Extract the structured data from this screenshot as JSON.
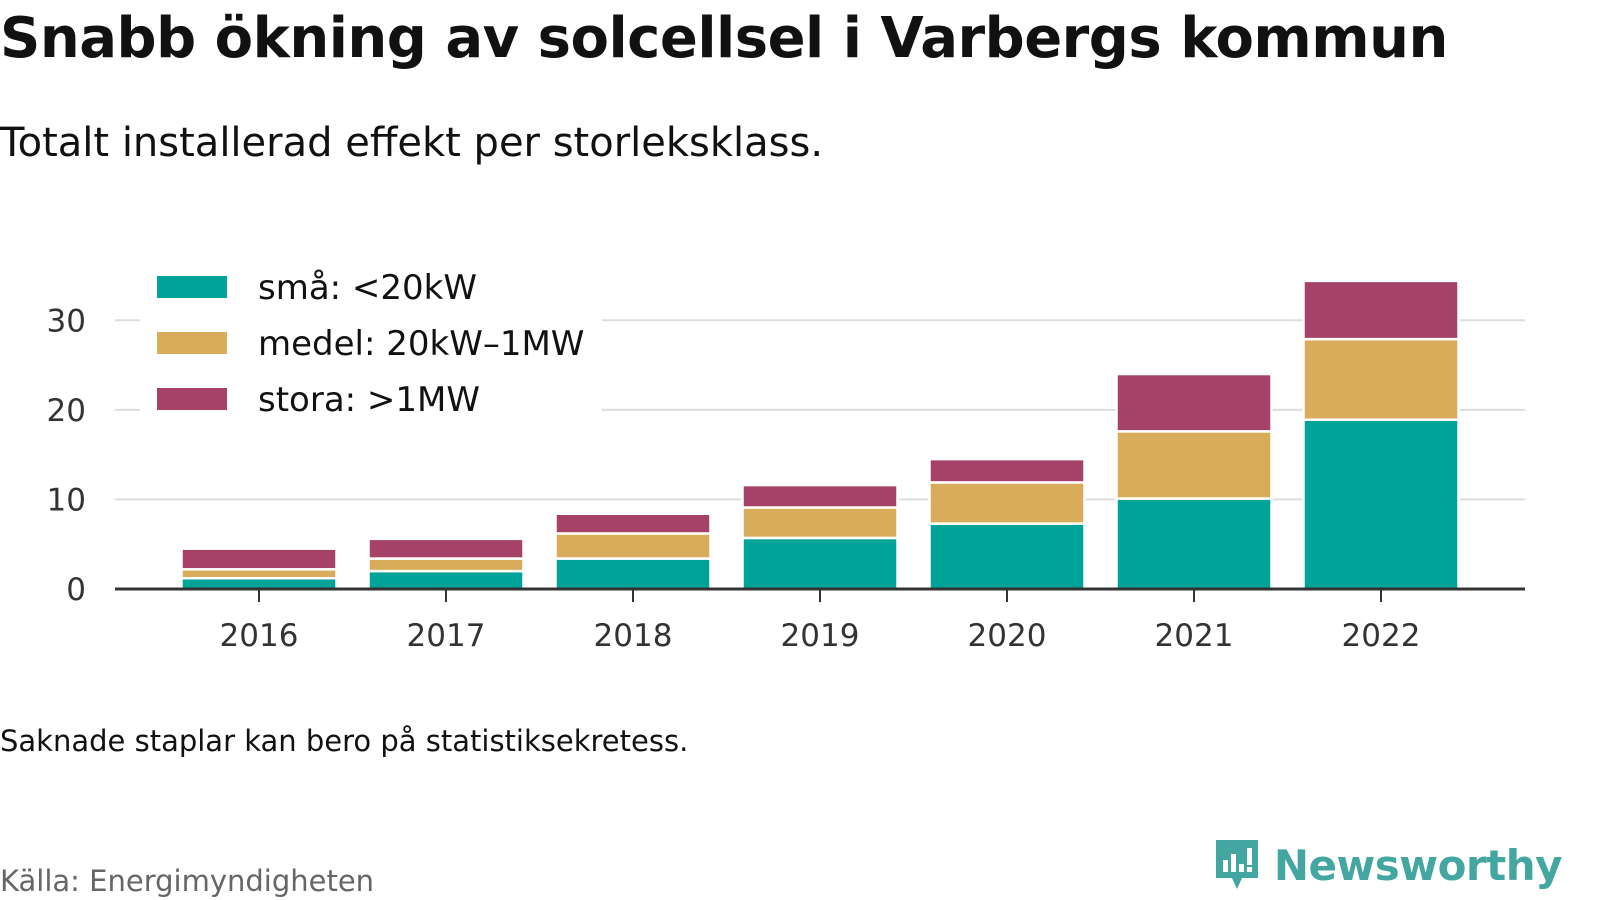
{
  "header": {
    "title": "Snabb ökning av solcellsel i Varbergs kommun",
    "subtitle": "Totalt installerad effekt per storleksklass."
  },
  "footer": {
    "note": "Saknade staplar kan bero på statistiksekretess.",
    "source": "Källa: Energimyndigheten",
    "brand": "Newsworthy",
    "brand_icon": "bar-chart-badge-icon",
    "brand_color": "#44a6a0"
  },
  "chart_data": {
    "type": "bar",
    "stacked": true,
    "categories": [
      "2016",
      "2017",
      "2018",
      "2019",
      "2020",
      "2021",
      "2022"
    ],
    "series": [
      {
        "name": "små: <20kW",
        "color": "#00a398",
        "values": [
          1.2,
          2.0,
          3.4,
          5.7,
          7.3,
          10.1,
          18.9
        ]
      },
      {
        "name": "medel: 20kW–1MW",
        "color": "#d9ac5b",
        "values": [
          1.0,
          1.4,
          2.8,
          3.4,
          4.6,
          7.5,
          9.0
        ]
      },
      {
        "name": "stora: >1MW",
        "color": "#a64168",
        "values": [
          2.3,
          2.2,
          2.2,
          2.5,
          2.6,
          6.4,
          6.5
        ]
      }
    ],
    "title": "Snabb ökning av solcellsel i Varbergs kommun",
    "subtitle": "Totalt installerad effekt per storleksklass.",
    "xlabel": "",
    "ylabel": "",
    "ylim": [
      0,
      34.5
    ],
    "yticks": [
      0,
      10,
      20,
      30
    ],
    "grid": true,
    "legend": "top-left"
  }
}
